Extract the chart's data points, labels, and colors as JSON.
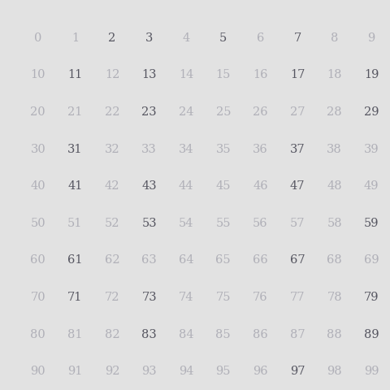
{
  "background_color": "#e2e2e2",
  "grid_rows": 10,
  "grid_cols": 10,
  "figsize": [
    4.8,
    4.8
  ],
  "dpi": 100,
  "prime_color": "#555560",
  "composite_color": "#b0b0b8",
  "font_size": 10.5,
  "font_family": "serif"
}
